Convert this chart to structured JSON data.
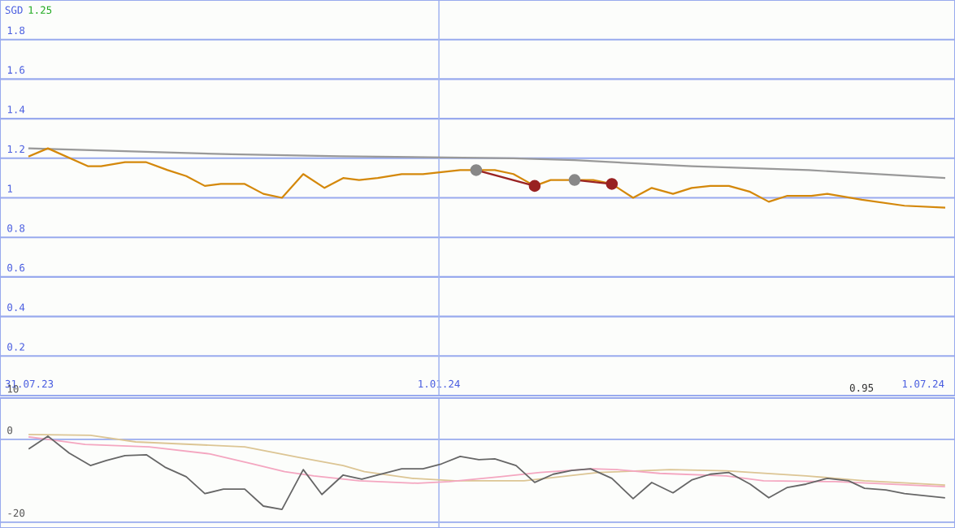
{
  "chart_data": [
    {
      "type": "line",
      "ylabel": "SGD",
      "annotations": [
        "1.25",
        "0.95"
      ],
      "xlim": [
        "2023-07-20",
        "2024-07-13"
      ],
      "ylim": [
        0,
        2.0
      ],
      "ref_lines": [
        {
          "axis": "x",
          "value": "2024-01-01",
          "color": "#aabbf2"
        }
      ],
      "xticks": [
        {
          "value": "2023-07-31",
          "label": "31.07.23"
        },
        {
          "value": "2024-01-01",
          "label": "1.01.24"
        },
        {
          "value": "2024-07-01",
          "label": "1.07.24"
        }
      ],
      "yticks": [
        0.2,
        0.4,
        0.6,
        0.8,
        1,
        1.2,
        1.4,
        1.6,
        1.8
      ],
      "grid": "y",
      "series": [
        {
          "color": "#999999",
          "x": [
            "2023-07-31",
            "2023-10-15",
            "2023-11-25",
            "2024-01-29",
            "2024-02-21",
            "2024-04-05",
            "2024-05-19",
            "2024-07-09"
          ],
          "values": [
            1.25,
            1.22,
            1.21,
            1.2,
            1.19,
            1.16,
            1.14,
            1.1
          ]
        },
        {
          "color": "#d4880a",
          "x": [
            "2023-07-31",
            "2023-08-07",
            "2023-08-22",
            "2023-08-27",
            "2023-09-05",
            "2023-09-13",
            "2023-09-21",
            "2023-09-28",
            "2023-10-05",
            "2023-10-11",
            "2023-10-20",
            "2023-10-27",
            "2023-11-03",
            "2023-11-11",
            "2023-11-19",
            "2023-11-26",
            "2023-12-02",
            "2023-12-09",
            "2023-12-18",
            "2023-12-26",
            "2024-01-02",
            "2024-01-09",
            "2024-01-16",
            "2024-01-22",
            "2024-01-29",
            "2024-02-06",
            "2024-02-12",
            "2024-02-20",
            "2024-02-28",
            "2024-03-06",
            "2024-03-14",
            "2024-03-21",
            "2024-03-29",
            "2024-04-05",
            "2024-04-12",
            "2024-04-19",
            "2024-04-27",
            "2024-05-04",
            "2024-05-11",
            "2024-05-20",
            "2024-05-26",
            "2024-06-08",
            "2024-06-24",
            "2024-07-09"
          ],
          "values": [
            1.21,
            1.25,
            1.16,
            1.16,
            1.18,
            1.18,
            1.14,
            1.11,
            1.06,
            1.07,
            1.07,
            1.02,
            1.0,
            1.12,
            1.05,
            1.1,
            1.09,
            1.1,
            1.12,
            1.12,
            1.13,
            1.14,
            1.14,
            1.14,
            1.12,
            1.06,
            1.09,
            1.09,
            1.09,
            1.07,
            1.0,
            1.05,
            1.02,
            1.05,
            1.06,
            1.06,
            1.03,
            0.98,
            1.01,
            1.01,
            1.02,
            0.99,
            0.96,
            0.95
          ]
        },
        {
          "color": "#992222",
          "marker": "circle",
          "x": [
            "2024-01-15",
            "2024-02-06",
            "2024-02-14",
            "2024-02-21",
            "2024-03-06"
          ],
          "values": [
            1.14,
            1.06,
            null,
            1.09,
            1.07
          ],
          "colors": [
            "#888888",
            "#992222",
            null,
            "#888888",
            "#992222"
          ]
        }
      ]
    },
    {
      "type": "line",
      "xlim": [
        "2023-07-20",
        "2024-07-13"
      ],
      "ylim": [
        -21.4,
        10
      ],
      "yticks": [
        10,
        0,
        -20
      ],
      "ref_lines": [
        {
          "axis": "x",
          "value": "2024-01-01",
          "color": "#aabbf2"
        }
      ],
      "tick_labels": "y",
      "grid": "y",
      "series": [
        {
          "color": "#dcc594",
          "x": [
            "2023-07-31",
            "2023-08-23",
            "2023-09-09",
            "2023-10-07",
            "2023-10-20",
            "2023-11-09",
            "2023-11-26",
            "2023-12-04",
            "2023-12-22",
            "2024-01-07",
            "2024-01-17",
            "2024-02-02",
            "2024-03-01",
            "2024-03-28",
            "2024-04-18",
            "2024-05-18",
            "2024-06-09",
            "2024-07-09"
          ],
          "values": [
            1.2,
            1.0,
            -0.6,
            -1.4,
            -1.8,
            -4.3,
            -6.3,
            -7.8,
            -9.4,
            -10.0,
            -10.0,
            -10.0,
            -8.0,
            -7.3,
            -7.6,
            -8.8,
            -10.0,
            -11.0
          ]
        },
        {
          "color": "#f4a6c0",
          "x": [
            "2023-07-31",
            "2023-08-07",
            "2023-08-21",
            "2023-09-14",
            "2023-10-07",
            "2023-10-23",
            "2023-11-04",
            "2023-11-15",
            "2023-12-02",
            "2023-12-24",
            "2024-01-05",
            "2024-01-24",
            "2024-02-08",
            "2024-02-28",
            "2024-03-08",
            "2024-03-24",
            "2024-04-18",
            "2024-05-02",
            "2024-05-29",
            "2024-07-09"
          ],
          "values": [
            0.6,
            0.0,
            -1.2,
            -1.8,
            -3.5,
            -5.9,
            -7.8,
            -8.8,
            -10.0,
            -10.6,
            -10.2,
            -9.0,
            -8.0,
            -7.1,
            -7.3,
            -8.2,
            -8.8,
            -10.0,
            -10.2,
            -11.4
          ]
        },
        {
          "color": "#666666",
          "x": [
            "2023-07-31",
            "2023-08-07",
            "2023-08-15",
            "2023-08-23",
            "2023-08-29",
            "2023-09-05",
            "2023-09-13",
            "2023-09-20",
            "2023-09-28",
            "2023-10-05",
            "2023-10-12",
            "2023-10-20",
            "2023-10-27",
            "2023-11-03",
            "2023-11-11",
            "2023-11-18",
            "2023-11-26",
            "2023-12-03",
            "2023-12-10",
            "2023-12-18",
            "2023-12-26",
            "2024-01-02",
            "2024-01-09",
            "2024-01-16",
            "2024-01-22",
            "2024-01-30",
            "2024-02-06",
            "2024-02-13",
            "2024-02-20",
            "2024-02-27",
            "2024-03-06",
            "2024-03-14",
            "2024-03-21",
            "2024-03-29",
            "2024-04-05",
            "2024-04-12",
            "2024-04-19",
            "2024-04-27",
            "2024-05-04",
            "2024-05-11",
            "2024-05-18",
            "2024-05-26",
            "2024-06-03",
            "2024-06-09",
            "2024-06-17",
            "2024-06-24",
            "2024-07-09"
          ],
          "values": [
            -2.2,
            0.8,
            -3.3,
            -6.3,
            -5.1,
            -3.9,
            -3.7,
            -6.7,
            -9.0,
            -13.1,
            -12.0,
            -12.0,
            -16.1,
            -16.9,
            -7.3,
            -13.3,
            -8.6,
            -9.6,
            -8.4,
            -7.1,
            -7.1,
            -5.9,
            -4.1,
            -4.9,
            -4.7,
            -6.3,
            -10.4,
            -8.4,
            -7.5,
            -7.1,
            -9.4,
            -14.3,
            -10.4,
            -12.9,
            -9.8,
            -8.4,
            -8.0,
            -10.8,
            -14.1,
            -11.6,
            -10.8,
            -9.4,
            -10.0,
            -11.8,
            -12.2,
            -13.1,
            -14.1
          ]
        }
      ]
    }
  ]
}
